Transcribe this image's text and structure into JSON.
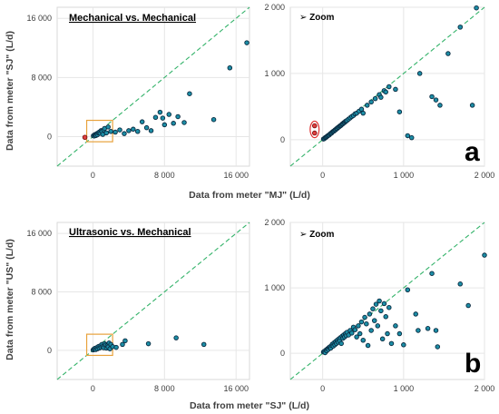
{
  "figure_labels": {
    "a": "a",
    "b": "b"
  },
  "shared_axis_titles": {
    "row_a_y": "Data from meter \"SJ\" (L/d)",
    "row_a_x": "Data from meter \"MJ\" (L/d)",
    "row_b_y": "Data from meter \"US\" (L/d)",
    "row_b_x": "Data from meter \"SJ\" (L/d)"
  },
  "chart_data": [
    {
      "id": "a-full",
      "type": "scatter",
      "title": "Mechanical vs. Mechanical",
      "xlim": [
        -4000,
        17500
      ],
      "ylim": [
        -4000,
        17500
      ],
      "xticks": [
        0,
        8000,
        16000
      ],
      "xtick_labels": [
        "0",
        "8 000",
        "16 000"
      ],
      "yticks": [
        0,
        8000,
        16000
      ],
      "ytick_labels": [
        "0",
        "8 000",
        "16 000"
      ],
      "grid": true,
      "diagonal": true,
      "points": [
        [
          50,
          120
        ],
        [
          150,
          80
        ],
        [
          200,
          250
        ],
        [
          300,
          300
        ],
        [
          350,
          150
        ],
        [
          450,
          400
        ],
        [
          500,
          250
        ],
        [
          600,
          500
        ],
        [
          700,
          600
        ],
        [
          800,
          450
        ],
        [
          900,
          800
        ],
        [
          1000,
          700
        ],
        [
          1100,
          300
        ],
        [
          1200,
          900
        ],
        [
          1300,
          1100
        ],
        [
          1500,
          500
        ],
        [
          1700,
          1300
        ],
        [
          2000,
          700
        ],
        [
          2500,
          600
        ],
        [
          3000,
          900
        ],
        [
          3500,
          400
        ],
        [
          4000,
          800
        ],
        [
          4500,
          1000
        ],
        [
          5000,
          700
        ],
        [
          5500,
          2000
        ],
        [
          6000,
          1200
        ],
        [
          6500,
          800
        ],
        [
          7000,
          2600
        ],
        [
          7500,
          3300
        ],
        [
          7800,
          2500
        ],
        [
          8000,
          1600
        ],
        [
          8500,
          3000
        ],
        [
          9000,
          1800
        ],
        [
          9500,
          2700
        ],
        [
          10200,
          1900
        ],
        [
          10800,
          5800
        ],
        [
          13500,
          2300
        ],
        [
          15300,
          9300
        ],
        [
          17200,
          12700
        ]
      ],
      "highlight_points": [
        [
          -900,
          -100
        ]
      ],
      "zoom_box": {
        "x": [
          -700,
          2200
        ],
        "y": [
          -700,
          2200
        ]
      }
    },
    {
      "id": "a-zoom",
      "type": "scatter",
      "title": "Zoom",
      "xlim": [
        -400,
        2000
      ],
      "ylim": [
        -400,
        2000
      ],
      "xticks": [
        0,
        1000,
        2000
      ],
      "xtick_labels": [
        "0",
        "1 000",
        "2 000"
      ],
      "yticks": [
        0,
        1000,
        2000
      ],
      "ytick_labels": [
        "0",
        "1 000",
        "2 000"
      ],
      "grid": true,
      "diagonal": true,
      "points": [
        [
          10,
          10
        ],
        [
          20,
          15
        ],
        [
          30,
          30
        ],
        [
          40,
          35
        ],
        [
          50,
          45
        ],
        [
          60,
          55
        ],
        [
          70,
          65
        ],
        [
          80,
          70
        ],
        [
          90,
          85
        ],
        [
          100,
          95
        ],
        [
          110,
          100
        ],
        [
          120,
          115
        ],
        [
          130,
          125
        ],
        [
          140,
          130
        ],
        [
          150,
          145
        ],
        [
          160,
          150
        ],
        [
          170,
          165
        ],
        [
          180,
          170
        ],
        [
          190,
          185
        ],
        [
          200,
          190
        ],
        [
          210,
          205
        ],
        [
          220,
          210
        ],
        [
          230,
          220
        ],
        [
          240,
          235
        ],
        [
          250,
          240
        ],
        [
          260,
          255
        ],
        [
          270,
          260
        ],
        [
          280,
          275
        ],
        [
          290,
          280
        ],
        [
          300,
          290
        ],
        [
          320,
          310
        ],
        [
          340,
          330
        ],
        [
          360,
          350
        ],
        [
          380,
          365
        ],
        [
          400,
          390
        ],
        [
          420,
          400
        ],
        [
          450,
          430
        ],
        [
          480,
          460
        ],
        [
          500,
          400
        ],
        [
          550,
          520
        ],
        [
          600,
          570
        ],
        [
          650,
          620
        ],
        [
          700,
          680
        ],
        [
          720,
          640
        ],
        [
          760,
          740
        ],
        [
          780,
          720
        ],
        [
          820,
          800
        ],
        [
          900,
          760
        ],
        [
          950,
          420
        ],
        [
          1050,
          60
        ],
        [
          1100,
          30
        ],
        [
          1200,
          1000
        ],
        [
          1350,
          650
        ],
        [
          1400,
          600
        ],
        [
          1450,
          520
        ],
        [
          1550,
          1300
        ],
        [
          1700,
          1700
        ],
        [
          1850,
          520
        ],
        [
          1900,
          1990
        ]
      ],
      "highlight_points": [
        [
          -100,
          210
        ],
        [
          -100,
          100
        ]
      ],
      "outlier_ellipse": {
        "cx": -100,
        "cy": 155,
        "rx": 55,
        "ry": 125
      }
    },
    {
      "id": "b-full",
      "type": "scatter",
      "title": "Ultrasonic vs. Mechanical",
      "xlim": [
        -4000,
        17500
      ],
      "ylim": [
        -4000,
        17500
      ],
      "xticks": [
        0,
        8000,
        16000
      ],
      "xtick_labels": [
        "0",
        "8 000",
        "16 000"
      ],
      "yticks": [
        0,
        8000,
        16000
      ],
      "ytick_labels": [
        "0",
        "8 000",
        "16 000"
      ],
      "grid": true,
      "diagonal": true,
      "points": [
        [
          20,
          50
        ],
        [
          100,
          150
        ],
        [
          200,
          250
        ],
        [
          300,
          100
        ],
        [
          400,
          350
        ],
        [
          500,
          200
        ],
        [
          600,
          500
        ],
        [
          700,
          300
        ],
        [
          800,
          600
        ],
        [
          900,
          400
        ],
        [
          1000,
          800
        ],
        [
          1100,
          500
        ],
        [
          1200,
          350
        ],
        [
          1300,
          900
        ],
        [
          1400,
          700
        ],
        [
          1500,
          300
        ],
        [
          1600,
          600
        ],
        [
          1700,
          450
        ],
        [
          1800,
          1000
        ],
        [
          1900,
          200
        ],
        [
          2000,
          800
        ],
        [
          2200,
          500
        ],
        [
          2600,
          400
        ],
        [
          3300,
          800
        ],
        [
          3600,
          1300
        ],
        [
          6200,
          900
        ],
        [
          9300,
          1700
        ],
        [
          12400,
          800
        ]
      ],
      "zoom_box": {
        "x": [
          -700,
          2200
        ],
        "y": [
          -700,
          2200
        ]
      }
    },
    {
      "id": "b-zoom",
      "type": "scatter",
      "title": "Zoom",
      "xlim": [
        -400,
        2000
      ],
      "ylim": [
        -400,
        2000
      ],
      "xticks": [
        0,
        1000,
        2000
      ],
      "xtick_labels": [
        "0",
        "1 000",
        "2 000"
      ],
      "yticks": [
        0,
        1000,
        2000
      ],
      "ytick_labels": [
        "0",
        "1 000",
        "2 000"
      ],
      "grid": true,
      "diagonal": true,
      "points": [
        [
          10,
          20
        ],
        [
          20,
          30
        ],
        [
          30,
          10
        ],
        [
          40,
          50
        ],
        [
          50,
          40
        ],
        [
          60,
          70
        ],
        [
          70,
          60
        ],
        [
          80,
          90
        ],
        [
          90,
          100
        ],
        [
          100,
          80
        ],
        [
          110,
          120
        ],
        [
          120,
          140
        ],
        [
          130,
          110
        ],
        [
          140,
          160
        ],
        [
          150,
          130
        ],
        [
          160,
          180
        ],
        [
          170,
          150
        ],
        [
          180,
          200
        ],
        [
          190,
          170
        ],
        [
          200,
          220
        ],
        [
          210,
          190
        ],
        [
          220,
          240
        ],
        [
          230,
          150
        ],
        [
          240,
          260
        ],
        [
          250,
          230
        ],
        [
          260,
          280
        ],
        [
          270,
          250
        ],
        [
          280,
          300
        ],
        [
          290,
          270
        ],
        [
          300,
          320
        ],
        [
          320,
          280
        ],
        [
          340,
          350
        ],
        [
          360,
          310
        ],
        [
          380,
          400
        ],
        [
          400,
          360
        ],
        [
          420,
          250
        ],
        [
          440,
          420
        ],
        [
          460,
          300
        ],
        [
          480,
          480
        ],
        [
          500,
          200
        ],
        [
          520,
          550
        ],
        [
          540,
          450
        ],
        [
          560,
          120
        ],
        [
          580,
          600
        ],
        [
          600,
          350
        ],
        [
          620,
          680
        ],
        [
          640,
          500
        ],
        [
          660,
          750
        ],
        [
          680,
          420
        ],
        [
          700,
          800
        ],
        [
          720,
          650
        ],
        [
          740,
          220
        ],
        [
          760,
          760
        ],
        [
          780,
          560
        ],
        [
          800,
          300
        ],
        [
          820,
          700
        ],
        [
          850,
          150
        ],
        [
          900,
          420
        ],
        [
          950,
          300
        ],
        [
          1000,
          130
        ],
        [
          1050,
          970
        ],
        [
          1150,
          600
        ],
        [
          1180,
          350
        ],
        [
          1300,
          380
        ],
        [
          1350,
          1220
        ],
        [
          1400,
          350
        ],
        [
          1420,
          100
        ],
        [
          1700,
          1060
        ],
        [
          1800,
          730
        ],
        [
          2000,
          1500
        ]
      ]
    }
  ]
}
